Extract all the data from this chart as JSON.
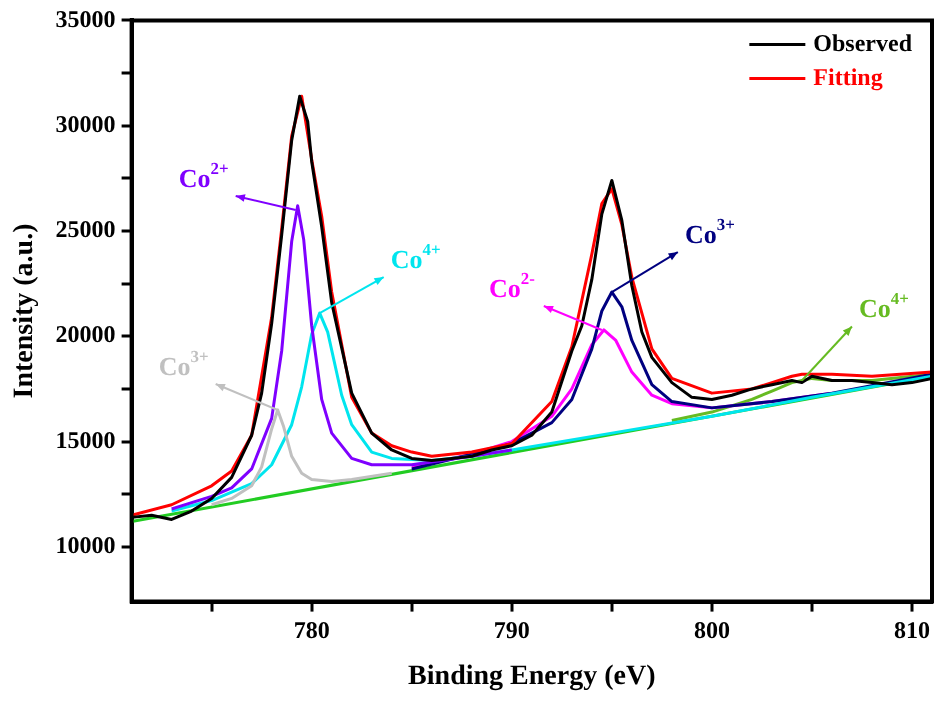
{
  "chart_data": {
    "type": "line",
    "xlabel": "Binding Energy (eV)",
    "ylabel": "Intensity (a.u.)",
    "xlim": [
      771,
      811
    ],
    "xticks": [
      {
        "value": 775,
        "label": null
      },
      780,
      {
        "value": 785,
        "label": null
      },
      790,
      {
        "value": 795,
        "label": null
      },
      800,
      {
        "value": 805,
        "label": null
      },
      810
    ],
    "ylim": [
      7400,
      35000
    ],
    "yticks": [
      10000,
      {
        "value": 12500,
        "label": null
      },
      15000,
      {
        "value": 17500,
        "label": null
      },
      20000,
      {
        "value": 22500,
        "label": null
      },
      25000,
      {
        "value": 27500,
        "label": null
      },
      30000,
      {
        "value": 32500,
        "label": null
      },
      35000
    ],
    "grid": false,
    "legend": "top right",
    "marker": "none",
    "line_style": "solid",
    "series": [
      {
        "name": "Observed",
        "color": "#000000",
        "x": [
          771,
          772,
          773,
          774,
          775,
          776,
          777,
          777.5,
          778,
          778.5,
          779,
          779.4,
          779.8,
          780,
          780.5,
          781,
          782,
          783,
          784,
          785,
          786,
          787,
          788,
          789,
          790,
          791,
          792,
          793,
          793.5,
          794,
          794.5,
          795,
          795.5,
          796,
          796.5,
          797,
          798,
          799,
          800,
          801,
          802,
          803,
          804,
          804.5,
          805,
          806,
          807,
          808,
          809,
          810,
          811
        ],
        "values": [
          11400,
          11500,
          11300,
          11700,
          12300,
          13300,
          15300,
          17300,
          20600,
          24800,
          29300,
          31400,
          30200,
          28300,
          25200,
          21600,
          17300,
          15400,
          14600,
          14200,
          14100,
          14200,
          14300,
          14600,
          14800,
          15300,
          16400,
          19300,
          20500,
          22700,
          25800,
          27400,
          25500,
          22400,
          20200,
          19000,
          17800,
          17100,
          17000,
          17200,
          17500,
          17700,
          17900,
          17800,
          18100,
          17900,
          17900,
          17800,
          17700,
          17800,
          18000
        ]
      },
      {
        "name": "Fitting",
        "color": "#ff0000",
        "x": [
          771,
          773,
          775,
          776,
          777,
          778,
          778.5,
          779,
          779.5,
          780,
          780.5,
          781,
          782,
          783,
          784,
          785,
          786,
          788,
          790,
          792,
          793,
          794,
          794.5,
          795,
          795.5,
          796,
          797,
          798,
          800,
          802,
          803,
          804,
          804.5,
          805,
          806,
          808,
          811
        ],
        "values": [
          11500,
          12000,
          12900,
          13600,
          15300,
          20900,
          25100,
          29500,
          31400,
          28400,
          25700,
          22100,
          17100,
          15400,
          14800,
          14500,
          14300,
          14500,
          14900,
          16900,
          19500,
          23900,
          26300,
          27000,
          25300,
          22800,
          19400,
          18000,
          17300,
          17500,
          17800,
          18100,
          18200,
          18200,
          18200,
          18100,
          18300
        ]
      },
      {
        "color": "#c0c0c0",
        "x": [
          775,
          776,
          777,
          777.5,
          778,
          778.3,
          778.6,
          779,
          779.5,
          780,
          781,
          782,
          784
        ],
        "values": [
          12000,
          12300,
          12900,
          13800,
          15600,
          16500,
          15700,
          14300,
          13500,
          13200,
          13100,
          13200,
          13500
        ]
      },
      {
        "color": "#7f00ff",
        "x": [
          773,
          775,
          776,
          777,
          778,
          778.5,
          779,
          779.3,
          779.6,
          780,
          780.5,
          781,
          782,
          783,
          785,
          788,
          790
        ],
        "values": [
          11800,
          12400,
          12800,
          13700,
          16100,
          19300,
          24500,
          26200,
          24600,
          20500,
          17000,
          15400,
          14200,
          13900,
          13900,
          14300,
          14600
        ]
      },
      {
        "color": "#00e5ee",
        "x": [
          773,
          775,
          777,
          778,
          779,
          779.5,
          780,
          780.4,
          780.8,
          781.5,
          782,
          783,
          784,
          786,
          788,
          790,
          795,
          800,
          805,
          811
        ],
        "values": [
          11700,
          12200,
          13000,
          13900,
          15800,
          17600,
          20100,
          21100,
          20200,
          17200,
          15800,
          14500,
          14200,
          14100,
          14300,
          14600,
          15400,
          16200,
          17100,
          18100
        ]
      },
      {
        "color": "#000080",
        "x": [
          785,
          788,
          790,
          792,
          793,
          794,
          794.5,
          795,
          795.5,
          796,
          797,
          798,
          800,
          803,
          806,
          811
        ],
        "values": [
          13700,
          14400,
          14900,
          15900,
          17000,
          19400,
          21200,
          22100,
          21400,
          19800,
          17700,
          16900,
          16600,
          16900,
          17300,
          18200
        ]
      },
      {
        "color": "#ff00ff",
        "x": [
          785,
          788,
          790,
          792,
          793,
          794,
          794.6,
          795.2,
          796,
          797,
          798,
          800,
          803,
          806
        ],
        "values": [
          13800,
          14400,
          15000,
          16200,
          17500,
          19600,
          20300,
          19800,
          18300,
          17200,
          16800,
          16600,
          16900,
          17300
        ]
      },
      {
        "color": "#66bb22",
        "x": [
          798,
          800,
          802,
          803,
          804,
          804.5,
          805,
          806,
          808,
          811
        ],
        "values": [
          16000,
          16400,
          17000,
          17400,
          17800,
          17900,
          18000,
          17900,
          17900,
          18200
        ]
      },
      {
        "color": "#22cc22",
        "x": [
          771,
          811
        ],
        "values": [
          11200,
          18100
        ]
      }
    ],
    "annotations": [
      {
        "text": "Co$^{3+}$",
        "x": 778.3,
        "y": 16500
      },
      {
        "text": "Co$^{2+}$",
        "x": 779.2,
        "y": 26000
      },
      {
        "text": "Co$^{4+}$",
        "x": 780.4,
        "y": 21100
      },
      {
        "text": "Co$^{2-}$",
        "x": 794.5,
        "y": 20300
      },
      {
        "text": "Co$^{3+}$",
        "x": 795,
        "y": 22100
      },
      {
        "text": "Co$^{4+}$",
        "x": 804.5,
        "y": 17900
      }
    ]
  }
}
